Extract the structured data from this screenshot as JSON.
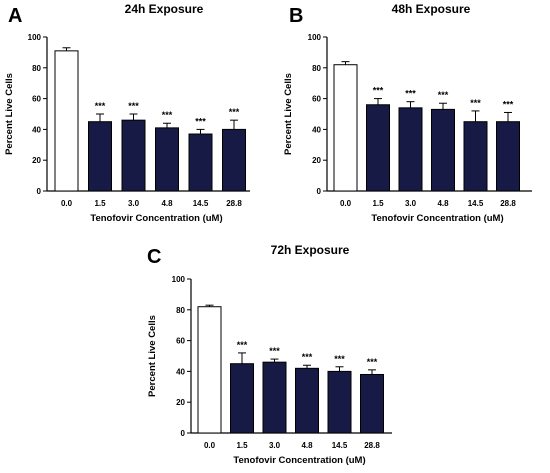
{
  "colors": {
    "control_fill": "#ffffff",
    "treated_fill": "#161a45",
    "axis": "#000000"
  },
  "chart_data": [
    {
      "type": "bar",
      "panel_label": "A",
      "title": "24h Exposure",
      "xlabel": "Tenofovir Concentration (uM)",
      "ylabel": "Percent Live Cells",
      "ylim": [
        0,
        100
      ],
      "yticks": [
        0,
        20,
        40,
        60,
        80,
        100
      ],
      "grid": false,
      "categories": [
        "0.0",
        "1.5",
        "3.0",
        "4.8",
        "14.5",
        "28.8"
      ],
      "values": [
        91,
        45,
        46,
        41,
        37,
        40
      ],
      "errors": [
        2,
        5,
        4,
        3,
        3,
        6
      ],
      "annotations": [
        "",
        "***",
        "***",
        "***",
        "***",
        "***"
      ]
    },
    {
      "type": "bar",
      "panel_label": "B",
      "title": "48h Exposure",
      "xlabel": "Tenofovir Concentration (uM)",
      "ylabel": "Percent Live Cells",
      "ylim": [
        0,
        100
      ],
      "yticks": [
        0,
        20,
        40,
        60,
        80,
        100
      ],
      "grid": false,
      "categories": [
        "0.0",
        "1.5",
        "3.0",
        "4.8",
        "14.5",
        "28.8"
      ],
      "values": [
        82,
        56,
        54,
        53,
        45,
        45
      ],
      "errors": [
        2,
        4,
        4,
        4,
        7,
        6
      ],
      "annotations": [
        "",
        "***",
        "***",
        "***",
        "***",
        "***"
      ]
    },
    {
      "type": "bar",
      "panel_label": "C",
      "title": "72h Exposure",
      "xlabel": "Tenofovir Concentration (uM)",
      "ylabel": "Percent Live Cells",
      "ylim": [
        0,
        100
      ],
      "yticks": [
        0,
        20,
        40,
        60,
        80,
        100
      ],
      "grid": false,
      "categories": [
        "0.0",
        "1.5",
        "3.0",
        "4.8",
        "14.5",
        "28.8"
      ],
      "values": [
        82,
        45,
        46,
        42,
        40,
        38
      ],
      "errors": [
        1,
        7,
        2,
        2,
        3,
        3
      ],
      "annotations": [
        "",
        "***",
        "***",
        "***",
        "***",
        "***"
      ]
    }
  ]
}
